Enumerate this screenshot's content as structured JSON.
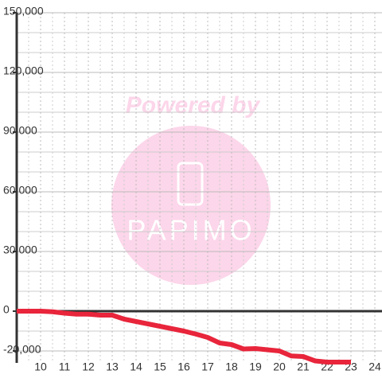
{
  "chart_data": {
    "type": "line",
    "watermark": [
      "Powered by",
      "PAPIMO"
    ],
    "x": [
      9,
      10,
      10.5,
      11,
      11.5,
      12,
      12.5,
      13,
      13.5,
      14,
      15,
      16,
      16.5,
      17,
      17.5,
      18,
      18.5,
      19,
      20,
      20.5,
      21,
      21.5,
      22,
      23
    ],
    "series": [
      {
        "color": "#e8253b",
        "values": [
          0,
          0,
          -300,
          -1000,
          -1500,
          -1500,
          -2000,
          -2000,
          -4000,
          -5200,
          -7600,
          -10000,
          -11500,
          -13200,
          -16000,
          -16800,
          -19000,
          -18800,
          -20000,
          -22500,
          -22800,
          -25000,
          -25600,
          -25600
        ]
      }
    ],
    "xlim": [
      9,
      24.3
    ],
    "ylim": [
      -26000,
      150000
    ],
    "xticks": [
      10,
      11,
      12,
      13,
      14,
      15,
      16,
      17,
      18,
      19,
      20,
      21,
      22,
      23,
      24
    ],
    "minor_xticks": [
      9.5,
      10.5,
      11.5,
      12.5,
      13.5,
      14.5,
      15.5,
      16.5,
      17.5,
      18.5,
      19.5,
      20.5,
      21.5,
      22.5,
      23.5
    ],
    "yticks": [
      {
        "value": -20000,
        "label": "-20,000"
      },
      0,
      {
        "value": 30000,
        "label": "30,000"
      },
      {
        "value": 60000,
        "label": "60,000"
      },
      {
        "value": 90000,
        "label": "90,000"
      },
      {
        "value": 120000,
        "label": "120,000"
      },
      {
        "value": 150000,
        "label": "150,000"
      }
    ],
    "minor_yticks": [
      -10000,
      10000,
      20000,
      40000,
      50000,
      70000,
      80000,
      100000,
      110000,
      130000,
      140000
    ],
    "grid": true
  }
}
